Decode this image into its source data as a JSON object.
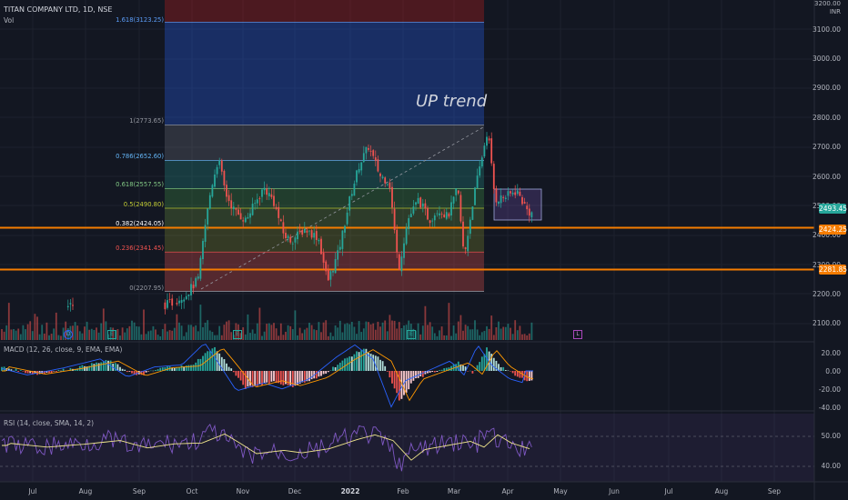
{
  "header": {
    "symbol": "TITAN COMPANY LTD, 1D, NSE",
    "vol_label": "Vol",
    "currency": "INR"
  },
  "annotation": "UP trend",
  "price_axis": [
    "3100.00",
    "3000.00",
    "2900.00",
    "2800.00",
    "2700.00",
    "2600.00",
    "2500.00",
    "2400.00",
    "2300.00",
    "2200.00",
    "2100.00"
  ],
  "price_axis_top": "3200.00",
  "badges": {
    "current": {
      "label": "2493.45",
      "color": "#26a69a"
    },
    "level1": {
      "label": "2424.25",
      "color": "#f57c00"
    },
    "level2": {
      "label": "2281.85",
      "color": "#f57c00"
    }
  },
  "fib_levels": [
    {
      "label": "1.618(3123.25)",
      "color": "#5b9cf6",
      "price": 3123.25
    },
    {
      "label": "1(2773.65)",
      "color": "#9598a1",
      "price": 2773.65
    },
    {
      "label": "0.786(2652.60)",
      "color": "#64b5f6",
      "price": 2652.6
    },
    {
      "label": "0.618(2557.55)",
      "color": "#81c784",
      "price": 2557.55
    },
    {
      "label": "0.5(2490.80)",
      "color": "#c0ca33",
      "price": 2490.8
    },
    {
      "label": "0.382(2424.05)",
      "color": "#ffffff",
      "price": 2424.05
    },
    {
      "label": "0.236(2341.45)",
      "color": "#ef5350",
      "price": 2341.45
    },
    {
      "label": "0(2207.95)",
      "color": "#9598a1",
      "price": 2207.95
    }
  ],
  "horizontal_levels": [
    2424.25,
    2281.85
  ],
  "macd": {
    "label": "MACD (12, 26, close, 9, EMA, EMA)",
    "axis": [
      "20.00",
      "0.00",
      "-20.00",
      "-40.00"
    ]
  },
  "rsi": {
    "label": "RSI (14, close, SMA, 14, 2)",
    "axis": [
      "50.00",
      "40.00"
    ]
  },
  "time_axis": [
    {
      "label": "Jul",
      "bold": false
    },
    {
      "label": "Aug",
      "bold": false
    },
    {
      "label": "Sep",
      "bold": false
    },
    {
      "label": "Oct",
      "bold": false
    },
    {
      "label": "Nov",
      "bold": false
    },
    {
      "label": "Dec",
      "bold": false
    },
    {
      "label": "2022",
      "bold": true
    },
    {
      "label": "Feb",
      "bold": false
    },
    {
      "label": "Mar",
      "bold": false
    },
    {
      "label": "Apr",
      "bold": false
    },
    {
      "label": "May",
      "bold": false
    },
    {
      "label": "Jun",
      "bold": false
    },
    {
      "label": "Jul",
      "bold": false
    },
    {
      "label": "Aug",
      "bold": false
    },
    {
      "label": "Sep",
      "bold": false
    }
  ],
  "event_markers": [
    "D",
    "E",
    "E",
    "E",
    "L"
  ],
  "colors": {
    "bg": "#131722",
    "up": "#26a69a",
    "down": "#ef5350",
    "orange": "#f57c00",
    "macd_line": "#2962ff",
    "signal_line": "#ff9800",
    "rsi_line": "#7e57c2",
    "rsi_ma": "#f0e68c"
  }
}
